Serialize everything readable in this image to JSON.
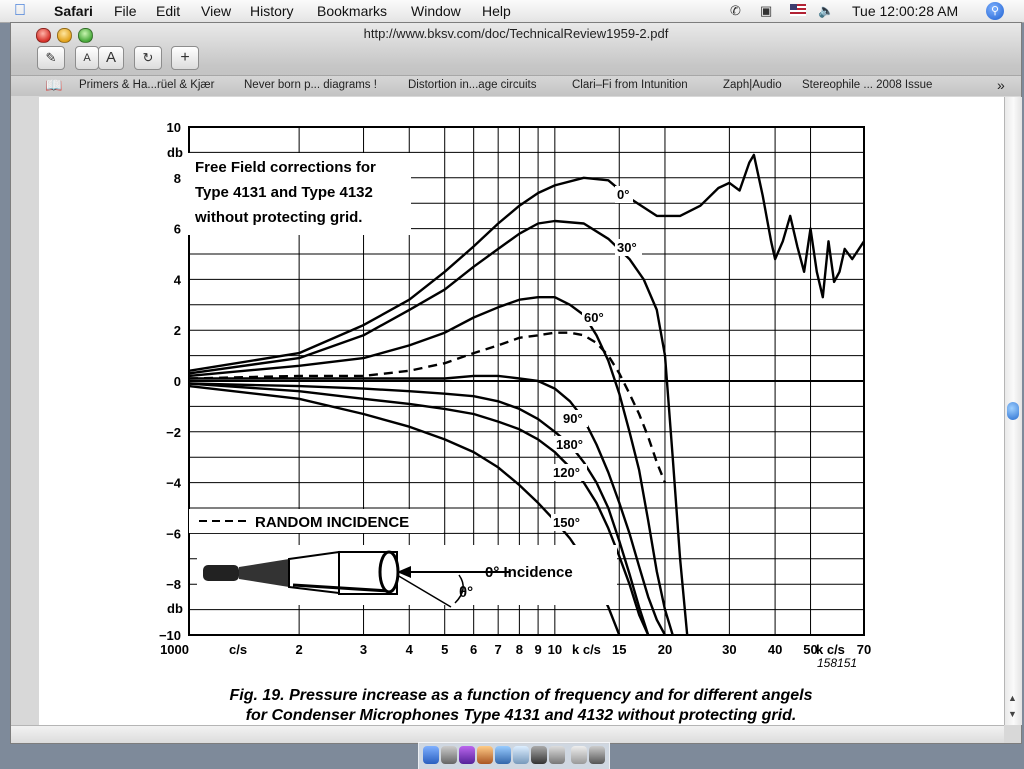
{
  "menubar": {
    "app_name": "Safari",
    "menus": [
      "File",
      "Edit",
      "View",
      "History",
      "Bookmarks",
      "Window",
      "Help"
    ],
    "clock": "Tue 12:00:28 AM"
  },
  "browser": {
    "url": "http://www.bksv.com/doc/TechnicalReview1959-2.pdf",
    "toolbar": {
      "text_smaller": "A",
      "text_larger": "A",
      "reload": "↻",
      "add_bookmark": "+"
    },
    "bookmarks": [
      "Primers & Ha...rüel & Kjær",
      "Never born p... diagrams !",
      "Distortion in...age circuits",
      "Clari–Fi from Intunition",
      "Zaph|Audio",
      "Stereophile ... 2008 Issue"
    ]
  },
  "figure": {
    "box_text": [
      "Free Field corrections  for",
      "Type 4131 and  Type 4132",
      "without protecting grid."
    ],
    "legend_text": "RANDOM   INCIDENCE",
    "incidence_text": "0° Incidence",
    "theta_text": "θ°",
    "db_unit": "db",
    "x_unit_left": "c/s",
    "x_unit_mid": "k c/s",
    "x_unit_right": "k c/s",
    "figure_id": "158151",
    "caption_line1": "Fig. 19.  Pressure increase as a function of frequency and for different angels",
    "caption_line2": "for Condenser Microphones Type 4131 and 4132 without protecting grid."
  },
  "chart_data": {
    "type": "line",
    "title": "Free Field corrections for Type 4131 and Type 4132 without protecting grid.",
    "xlabel": "c/s",
    "ylabel": "db",
    "x_scale": "log",
    "xlim": [
      1000,
      70000
    ],
    "ylim": [
      -10,
      10
    ],
    "x_ticks": [
      1000,
      2000,
      3000,
      4000,
      5000,
      6000,
      7000,
      8000,
      9000,
      10000,
      15000,
      20000,
      30000,
      40000,
      50000,
      70000
    ],
    "x_tick_labels": [
      "1000",
      "2",
      "3",
      "4",
      "5",
      "6",
      "7",
      "8",
      "9",
      "10",
      "15",
      "20",
      "30",
      "40",
      "50",
      "70"
    ],
    "y_ticks": [
      -10,
      -8,
      -6,
      -4,
      -2,
      0,
      2,
      4,
      6,
      8,
      10
    ],
    "y_tick_labels": [
      "−10",
      "−8",
      "−6",
      "−4",
      "−2",
      "0",
      "2",
      "4",
      "6",
      "8",
      "10"
    ],
    "grid": true,
    "series": [
      {
        "name": "0°",
        "style": "solid",
        "x": [
          1000,
          2000,
          3000,
          4000,
          5000,
          6000,
          7000,
          8000,
          9000,
          10000,
          12000,
          14000,
          16000,
          19000,
          22000,
          25000,
          28000,
          30000,
          32000,
          34000,
          35000,
          37000,
          39000,
          40000,
          42000,
          44000,
          46000,
          48000,
          50000,
          52000,
          54000,
          56000,
          58000,
          60000,
          62000,
          65000,
          70000
        ],
        "y": [
          0.4,
          1.1,
          2.2,
          3.2,
          4.3,
          5.3,
          6.2,
          6.9,
          7.4,
          7.7,
          8.0,
          7.9,
          7.2,
          6.5,
          6.5,
          6.9,
          7.6,
          7.8,
          7.5,
          8.6,
          8.9,
          7.3,
          5.5,
          4.8,
          5.5,
          6.5,
          5.3,
          4.3,
          6.0,
          4.3,
          3.3,
          5.5,
          3.9,
          4.3,
          5.2,
          4.8,
          5.5
        ]
      },
      {
        "name": "30°",
        "style": "solid",
        "x": [
          1000,
          2000,
          3000,
          4000,
          5000,
          6000,
          7000,
          8000,
          9000,
          10000,
          12000,
          14000,
          16000,
          17500,
          19000,
          20000,
          21000,
          22000,
          23000
        ],
        "y": [
          0.3,
          0.9,
          1.8,
          2.8,
          3.6,
          4.5,
          5.2,
          5.8,
          6.2,
          6.3,
          6.2,
          5.6,
          4.8,
          4.0,
          2.8,
          1.0,
          -3.0,
          -7.0,
          -10.0
        ]
      },
      {
        "name": "60°",
        "style": "solid",
        "x": [
          1000,
          2000,
          3000,
          4000,
          5000,
          6000,
          7000,
          8000,
          9000,
          10000,
          11000,
          12000,
          13000,
          14000,
          15000,
          16000,
          17000,
          18000,
          19000,
          20000,
          21000
        ],
        "y": [
          0.2,
          0.6,
          0.9,
          1.4,
          1.9,
          2.5,
          2.9,
          3.2,
          3.3,
          3.3,
          3.0,
          2.6,
          1.8,
          0.8,
          -0.5,
          -2.0,
          -3.5,
          -5.5,
          -7.5,
          -9.0,
          -10.0
        ]
      },
      {
        "name": "RANDOM INCIDENCE",
        "style": "dashed",
        "x": [
          1000,
          2000,
          3000,
          4000,
          5000,
          6000,
          7000,
          8000,
          9000,
          10000,
          11000,
          12000,
          13000,
          14000,
          15000,
          16000,
          17000,
          18000,
          19000,
          20000
        ],
        "y": [
          0.1,
          0.2,
          0.2,
          0.4,
          0.7,
          1.1,
          1.4,
          1.7,
          1.8,
          1.9,
          1.9,
          1.8,
          1.5,
          1.0,
          0.3,
          -0.5,
          -1.3,
          -2.2,
          -3.2,
          -4.0
        ]
      },
      {
        "name": "90°",
        "style": "solid",
        "x": [
          1000,
          2000,
          3000,
          4000,
          5000,
          6000,
          7000,
          8000,
          9000,
          10000,
          11000,
          12000,
          13000,
          14000,
          15000,
          16000,
          17000,
          18000,
          19000,
          20000
        ],
        "y": [
          0.1,
          0.1,
          0.1,
          0.1,
          0.1,
          0.2,
          0.2,
          0.1,
          0.0,
          -0.3,
          -0.8,
          -1.5,
          -2.5,
          -3.6,
          -4.8,
          -6.0,
          -7.3,
          -8.5,
          -9.4,
          -10.0
        ]
      },
      {
        "name": "180°",
        "style": "solid",
        "x": [
          1000,
          2000,
          3000,
          4000,
          5000,
          6000,
          7000,
          8000,
          9000,
          10000,
          11000,
          12000,
          13000,
          14000,
          15000,
          16000,
          17000,
          18000
        ],
        "y": [
          -0.1,
          -0.2,
          -0.3,
          -0.4,
          -0.5,
          -0.6,
          -0.8,
          -1.1,
          -1.5,
          -2.0,
          -2.5,
          -3.2,
          -4.0,
          -5.0,
          -6.3,
          -7.6,
          -8.9,
          -10.0
        ]
      },
      {
        "name": "120°",
        "style": "solid",
        "x": [
          1000,
          2000,
          3000,
          4000,
          5000,
          6000,
          7000,
          8000,
          9000,
          10000,
          11000,
          12000,
          13000,
          14000,
          15000,
          16000,
          17000,
          18000
        ],
        "y": [
          -0.1,
          -0.4,
          -0.7,
          -0.9,
          -1.1,
          -1.3,
          -1.6,
          -1.9,
          -2.3,
          -2.8,
          -3.4,
          -4.0,
          -4.8,
          -5.8,
          -6.9,
          -8.0,
          -9.2,
          -10.0
        ]
      },
      {
        "name": "150°",
        "style": "solid",
        "x": [
          1000,
          2000,
          3000,
          4000,
          5000,
          6000,
          7000,
          8000,
          9000,
          10000,
          11000,
          12000,
          13000,
          14000,
          15000
        ],
        "y": [
          -0.2,
          -0.7,
          -1.3,
          -1.8,
          -2.3,
          -2.8,
          -3.4,
          -4.1,
          -4.8,
          -5.5,
          -6.2,
          -7.0,
          -7.9,
          -8.9,
          -10.0
        ]
      }
    ]
  }
}
